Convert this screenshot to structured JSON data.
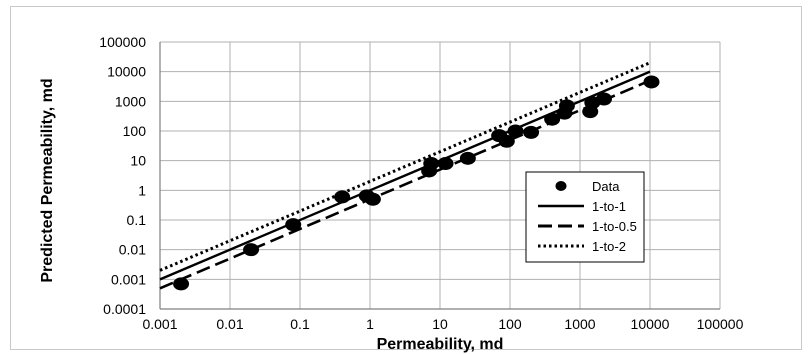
{
  "chart_data": {
    "type": "scatter",
    "title": "",
    "xlabel": "Permeability, md",
    "ylabel": "Predicted Permeability, md",
    "x_scale": "log",
    "y_scale": "log",
    "xlim": [
      0.001,
      100000
    ],
    "ylim": [
      0.0001,
      100000
    ],
    "x_ticks": [
      "0.001",
      "0.01",
      "0.1",
      "1",
      "10",
      "100",
      "1000",
      "10000",
      "100000"
    ],
    "y_ticks": [
      "100000",
      "10000",
      "1000",
      "100",
      "10",
      "1",
      "0.1",
      "0.01",
      "0.001",
      "0.0001"
    ],
    "grid": true,
    "legend_position": "right",
    "series": [
      {
        "name": "Data",
        "kind": "scatter",
        "color": "#000000",
        "x": [
          0.002,
          0.02,
          0.08,
          0.4,
          0.9,
          1.1,
          7,
          7.5,
          12,
          25,
          70,
          90,
          120,
          200,
          400,
          600,
          650,
          1400,
          1500,
          2200,
          10500
        ],
        "y": [
          0.0007,
          0.01,
          0.07,
          0.6,
          0.65,
          0.5,
          4.5,
          8,
          8,
          12,
          70,
          45,
          100,
          90,
          250,
          400,
          700,
          450,
          900,
          1200,
          4500
        ]
      },
      {
        "name": "1-to-1",
        "kind": "line",
        "dash": "solid",
        "color": "#000000",
        "x": [
          0.001,
          10000
        ],
        "y": [
          0.001,
          10000
        ]
      },
      {
        "name": "1-to-0.5",
        "kind": "line",
        "dash": "dashed",
        "color": "#000000",
        "x": [
          0.001,
          10000
        ],
        "y": [
          0.0005,
          5000
        ]
      },
      {
        "name": "1-to-2",
        "kind": "line",
        "dash": "dotted",
        "color": "#000000",
        "x": [
          0.001,
          10000
        ],
        "y": [
          0.002,
          20000
        ]
      }
    ]
  }
}
